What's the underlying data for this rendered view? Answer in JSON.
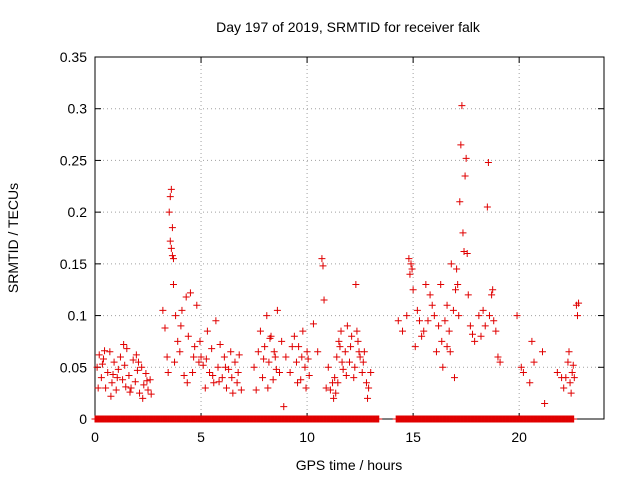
{
  "chart_data": {
    "type": "scatter",
    "title": "Day 197 of 2019, SRMTID for receiver falk",
    "xlabel": "GPS time / hours",
    "ylabel": "SRMTID / TECUs",
    "xlim": [
      0,
      24
    ],
    "ylim": [
      0,
      0.35
    ],
    "xticks": [
      0,
      5,
      10,
      15,
      20
    ],
    "xtick_labels": [
      "0",
      "5",
      "10",
      "15",
      "20"
    ],
    "yticks": [
      0,
      0.05,
      0.1,
      0.15,
      0.2,
      0.25,
      0.3,
      0.35
    ],
    "ytick_labels": [
      "0",
      "0.05",
      "0.1",
      "0.15",
      "0.2",
      "0.25",
      "0.3",
      "0.35"
    ],
    "grid": true,
    "marker": "+",
    "color": "#e00000",
    "series": [
      {
        "name": "SRMTID",
        "points": [
          [
            0.1,
            0.05
          ],
          [
            0.2,
            0.062
          ],
          [
            0.3,
            0.04
          ],
          [
            0.4,
            0.058
          ],
          [
            0.5,
            0.03
          ],
          [
            0.6,
            0.045
          ],
          [
            0.7,
            0.065
          ],
          [
            0.8,
            0.035
          ],
          [
            0.9,
            0.055
          ],
          [
            1.0,
            0.028
          ],
          [
            1.1,
            0.048
          ],
          [
            1.2,
            0.06
          ],
          [
            1.3,
            0.038
          ],
          [
            1.4,
            0.052
          ],
          [
            1.5,
            0.068
          ],
          [
            1.6,
            0.042
          ],
          [
            1.7,
            0.03
          ],
          [
            1.8,
            0.057
          ],
          [
            1.9,
            0.036
          ],
          [
            2.0,
            0.047
          ],
          [
            2.1,
            0.025
          ],
          [
            2.2,
            0.05
          ],
          [
            2.3,
            0.033
          ],
          [
            2.4,
            0.044
          ],
          [
            2.5,
            0.028
          ],
          [
            2.6,
            0.038
          ],
          [
            0.15,
            0.03
          ],
          [
            0.45,
            0.066
          ],
          [
            0.75,
            0.022
          ],
          [
            1.05,
            0.04
          ],
          [
            1.35,
            0.072
          ],
          [
            1.65,
            0.026
          ],
          [
            1.95,
            0.062
          ],
          [
            2.25,
            0.02
          ],
          [
            2.45,
            0.037
          ],
          [
            2.65,
            0.024
          ],
          [
            0.35,
            0.053
          ],
          [
            0.85,
            0.043
          ],
          [
            1.45,
            0.031
          ],
          [
            2.05,
            0.055
          ],
          [
            3.2,
            0.105
          ],
          [
            3.3,
            0.088
          ],
          [
            3.4,
            0.06
          ],
          [
            3.5,
            0.2
          ],
          [
            3.55,
            0.215
          ],
          [
            3.6,
            0.222
          ],
          [
            3.65,
            0.185
          ],
          [
            3.55,
            0.172
          ],
          [
            3.6,
            0.165
          ],
          [
            3.65,
            0.158
          ],
          [
            3.7,
            0.155
          ],
          [
            3.7,
            0.13
          ],
          [
            3.8,
            0.1
          ],
          [
            3.9,
            0.075
          ],
          [
            4.0,
            0.065
          ],
          [
            4.1,
            0.105
          ],
          [
            4.2,
            0.042
          ],
          [
            4.3,
            0.118
          ],
          [
            4.4,
            0.08
          ],
          [
            4.5,
            0.122
          ],
          [
            4.6,
            0.045
          ],
          [
            4.7,
            0.07
          ],
          [
            4.8,
            0.11
          ],
          [
            4.9,
            0.055
          ],
          [
            3.45,
            0.045
          ],
          [
            3.75,
            0.055
          ],
          [
            4.05,
            0.09
          ],
          [
            4.35,
            0.035
          ],
          [
            4.65,
            0.06
          ],
          [
            4.95,
            0.075
          ],
          [
            5.0,
            0.06
          ],
          [
            5.1,
            0.052
          ],
          [
            5.2,
            0.03
          ],
          [
            5.3,
            0.085
          ],
          [
            5.4,
            0.045
          ],
          [
            5.5,
            0.068
          ],
          [
            5.6,
            0.035
          ],
          [
            5.7,
            0.095
          ],
          [
            5.8,
            0.05
          ],
          [
            5.9,
            0.072
          ],
          [
            6.0,
            0.04
          ],
          [
            6.1,
            0.06
          ],
          [
            6.2,
            0.03
          ],
          [
            6.3,
            0.048
          ],
          [
            6.4,
            0.065
          ],
          [
            6.5,
            0.025
          ],
          [
            6.6,
            0.055
          ],
          [
            6.7,
            0.035
          ],
          [
            6.8,
            0.062
          ],
          [
            6.9,
            0.028
          ],
          [
            5.25,
            0.058
          ],
          [
            5.55,
            0.042
          ],
          [
            5.85,
            0.036
          ],
          [
            6.15,
            0.05
          ],
          [
            6.45,
            0.04
          ],
          [
            6.75,
            0.045
          ],
          [
            7.5,
            0.05
          ],
          [
            7.7,
            0.065
          ],
          [
            7.8,
            0.085
          ],
          [
            7.9,
            0.04
          ],
          [
            8.0,
            0.07
          ],
          [
            8.1,
            0.1
          ],
          [
            8.2,
            0.055
          ],
          [
            8.3,
            0.08
          ],
          [
            8.4,
            0.038
          ],
          [
            8.5,
            0.06
          ],
          [
            8.6,
            0.105
          ],
          [
            8.7,
            0.045
          ],
          [
            8.8,
            0.075
          ],
          [
            8.9,
            0.012
          ],
          [
            8.45,
            0.065
          ],
          [
            8.15,
            0.03
          ],
          [
            7.6,
            0.028
          ],
          [
            8.55,
            0.048
          ],
          [
            8.25,
            0.078
          ],
          [
            7.95,
            0.058
          ],
          [
            9.0,
            0.06
          ],
          [
            9.2,
            0.045
          ],
          [
            9.4,
            0.08
          ],
          [
            9.5,
            0.055
          ],
          [
            9.6,
            0.07
          ],
          [
            9.7,
            0.038
          ],
          [
            9.8,
            0.085
          ],
          [
            9.9,
            0.05
          ],
          [
            10.0,
            0.065
          ],
          [
            10.1,
            0.042
          ],
          [
            9.3,
            0.07
          ],
          [
            9.55,
            0.035
          ],
          [
            9.75,
            0.06
          ],
          [
            9.95,
            0.03
          ],
          [
            10.05,
            0.058
          ],
          [
            10.3,
            0.092
          ],
          [
            10.5,
            0.065
          ],
          [
            10.7,
            0.155
          ],
          [
            10.75,
            0.148
          ],
          [
            10.8,
            0.115
          ],
          [
            10.9,
            0.03
          ],
          [
            11.0,
            0.05
          ],
          [
            11.1,
            0.028
          ],
          [
            11.2,
            0.035
          ],
          [
            11.3,
            0.04
          ],
          [
            11.4,
            0.06
          ],
          [
            11.5,
            0.075
          ],
          [
            11.55,
            0.07
          ],
          [
            11.6,
            0.085
          ],
          [
            11.7,
            0.048
          ],
          [
            11.8,
            0.065
          ],
          [
            11.9,
            0.09
          ],
          [
            12.0,
            0.055
          ],
          [
            12.1,
            0.08
          ],
          [
            12.2,
            0.04
          ],
          [
            12.3,
            0.13
          ],
          [
            12.35,
            0.085
          ],
          [
            12.4,
            0.075
          ],
          [
            12.5,
            0.06
          ],
          [
            12.6,
            0.045
          ],
          [
            12.7,
            0.065
          ],
          [
            12.8,
            0.035
          ],
          [
            12.9,
            0.03
          ],
          [
            13.0,
            0.045
          ],
          [
            11.45,
            0.035
          ],
          [
            11.65,
            0.055
          ],
          [
            11.85,
            0.042
          ],
          [
            12.05,
            0.07
          ],
          [
            12.25,
            0.05
          ],
          [
            12.45,
            0.065
          ],
          [
            12.65,
            0.055
          ],
          [
            12.85,
            0.02
          ],
          [
            11.35,
            0.025
          ],
          [
            11.25,
            0.02
          ],
          [
            14.3,
            0.095
          ],
          [
            14.5,
            0.085
          ],
          [
            14.7,
            0.1
          ],
          [
            14.8,
            0.155
          ],
          [
            14.85,
            0.14
          ],
          [
            14.9,
            0.15
          ],
          [
            14.95,
            0.145
          ],
          [
            15.0,
            0.125
          ],
          [
            15.1,
            0.07
          ],
          [
            15.2,
            0.105
          ],
          [
            15.3,
            0.095
          ],
          [
            15.4,
            0.08
          ],
          [
            15.5,
            0.085
          ],
          [
            15.6,
            0.13
          ],
          [
            15.7,
            0.095
          ],
          [
            15.8,
            0.12
          ],
          [
            15.9,
            0.11
          ],
          [
            16.0,
            0.1
          ],
          [
            16.1,
            0.065
          ],
          [
            16.2,
            0.09
          ],
          [
            16.3,
            0.13
          ],
          [
            16.35,
            0.075
          ],
          [
            16.4,
            0.05
          ],
          [
            16.5,
            0.095
          ],
          [
            16.6,
            0.11
          ],
          [
            16.7,
            0.085
          ],
          [
            16.75,
            0.065
          ],
          [
            16.8,
            0.15
          ],
          [
            16.9,
            0.105
          ],
          [
            17.0,
            0.125
          ],
          [
            17.05,
            0.145
          ],
          [
            17.1,
            0.13
          ],
          [
            17.15,
            0.1
          ],
          [
            17.2,
            0.21
          ],
          [
            17.25,
            0.265
          ],
          [
            17.3,
            0.303
          ],
          [
            17.35,
            0.18
          ],
          [
            17.4,
            0.162
          ],
          [
            17.45,
            0.235
          ],
          [
            17.5,
            0.252
          ],
          [
            17.55,
            0.16
          ],
          [
            17.6,
            0.12
          ],
          [
            17.7,
            0.09
          ],
          [
            17.8,
            0.082
          ],
          [
            17.9,
            0.075
          ],
          [
            18.1,
            0.1
          ],
          [
            18.2,
            0.08
          ],
          [
            18.3,
            0.105
          ],
          [
            18.4,
            0.09
          ],
          [
            18.5,
            0.205
          ],
          [
            18.55,
            0.248
          ],
          [
            18.6,
            0.1
          ],
          [
            18.7,
            0.12
          ],
          [
            18.75,
            0.125
          ],
          [
            18.8,
            0.095
          ],
          [
            18.9,
            0.085
          ],
          [
            19.0,
            0.06
          ],
          [
            19.1,
            0.055
          ],
          [
            16.6,
            0.07
          ],
          [
            16.95,
            0.04
          ],
          [
            19.9,
            0.1
          ],
          [
            20.1,
            0.05
          ],
          [
            20.2,
            0.045
          ],
          [
            20.5,
            0.035
          ],
          [
            20.6,
            0.075
          ],
          [
            20.7,
            0.055
          ],
          [
            21.1,
            0.065
          ],
          [
            21.2,
            0.015
          ],
          [
            21.8,
            0.045
          ],
          [
            22.0,
            0.04
          ],
          [
            22.1,
            0.03
          ],
          [
            22.2,
            0.04
          ],
          [
            22.3,
            0.055
          ],
          [
            22.35,
            0.065
          ],
          [
            22.4,
            0.035
          ],
          [
            22.45,
            0.025
          ],
          [
            22.5,
            0.045
          ],
          [
            22.55,
            0.052
          ],
          [
            22.6,
            0.04
          ],
          [
            22.7,
            0.11
          ],
          [
            22.75,
            0.1
          ],
          [
            22.8,
            0.112
          ]
        ],
        "zero_bands": [
          [
            0.0,
            13.4
          ],
          [
            14.2,
            22.6
          ]
        ]
      }
    ]
  }
}
